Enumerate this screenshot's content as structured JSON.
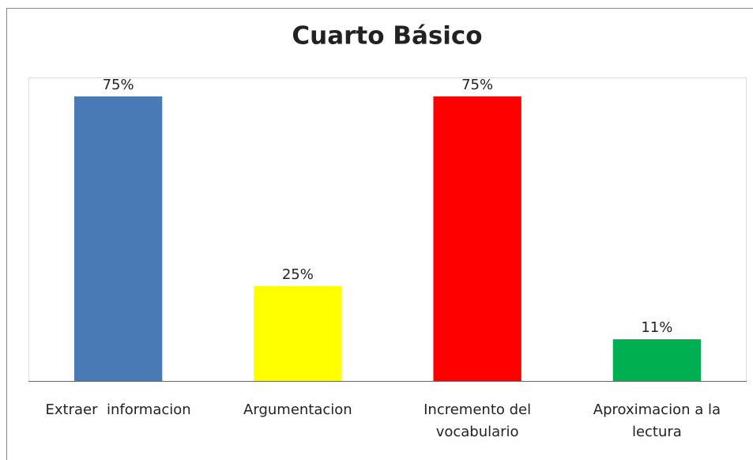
{
  "chart_data": {
    "type": "bar",
    "title": "Cuarto Básico",
    "categories": [
      "Extraer  informacion",
      "Argumentacion",
      "Incremento del vocabulario",
      "Aproximacion a la lectura"
    ],
    "values": [
      75,
      25,
      75,
      11
    ],
    "value_labels": [
      "75%",
      "25%",
      "75%",
      "11%"
    ],
    "colors": [
      "#4a7ab5",
      "#ffff00",
      "#ff0000",
      "#00b050"
    ],
    "ylim": [
      0,
      80
    ]
  }
}
